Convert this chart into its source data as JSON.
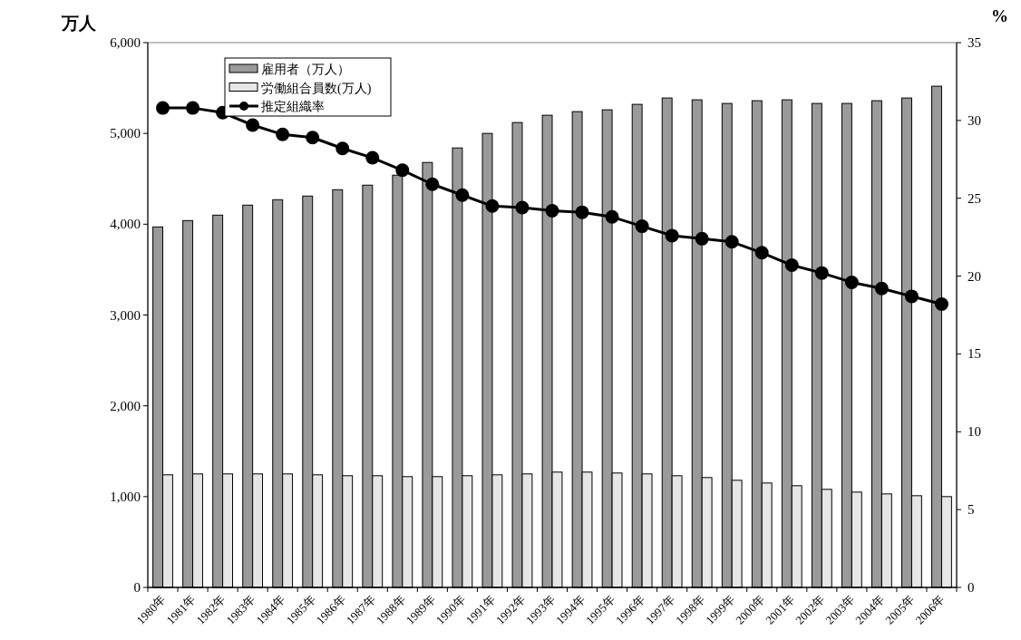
{
  "chart_data": {
    "type": "bar",
    "ylabel": "万人",
    "y2label": "%",
    "categories": [
      "1980年",
      "1981年",
      "1982年",
      "1983年",
      "1984年",
      "1985年",
      "1986年",
      "1987年",
      "1988年",
      "1989年",
      "1990年",
      "1991年",
      "1992年",
      "1993年",
      "1994年",
      "1995年",
      "1996年",
      "1997年",
      "1998年",
      "1999年",
      "2000年",
      "2001年",
      "2002年",
      "2003年",
      "2004年",
      "2005年",
      "2006年"
    ],
    "series": [
      {
        "name": "雇用者（万人）",
        "color": "#9a9a9a",
        "values": [
          3970,
          4040,
          4100,
          4210,
          4270,
          4310,
          4380,
          4430,
          4540,
          4680,
          4840,
          5000,
          5120,
          5200,
          5240,
          5260,
          5320,
          5390,
          5370,
          5330,
          5360,
          5370,
          5330,
          5330,
          5360,
          5390,
          5520
        ]
      },
      {
        "name": "労働組合員数(万人)",
        "color": "#e6e6e6",
        "values": [
          1240,
          1250,
          1250,
          1250,
          1250,
          1240,
          1230,
          1230,
          1220,
          1220,
          1230,
          1240,
          1250,
          1270,
          1270,
          1260,
          1250,
          1230,
          1210,
          1180,
          1150,
          1120,
          1080,
          1050,
          1030,
          1010,
          1000
        ]
      },
      {
        "name": "推定組織率",
        "type": "line",
        "axis": "y2",
        "color": "#000000",
        "marker": "circle",
        "values": [
          30.8,
          30.8,
          30.5,
          29.7,
          29.1,
          28.9,
          28.2,
          27.6,
          26.8,
          25.9,
          25.2,
          24.5,
          24.4,
          24.2,
          24.1,
          23.8,
          23.2,
          22.6,
          22.4,
          22.2,
          21.5,
          20.7,
          20.2,
          19.6,
          19.2,
          18.7,
          18.2
        ]
      }
    ],
    "ylim": [
      0,
      6000
    ],
    "yticks": [
      0,
      {
        "value": 1000,
        "label": "1,000"
      },
      {
        "value": 2000,
        "label": "2,000"
      },
      {
        "value": 3000,
        "label": "3,000"
      },
      {
        "value": 4000,
        "label": "4,000"
      },
      {
        "value": 5000,
        "label": "5,000"
      },
      {
        "value": 6000,
        "label": "6,000"
      }
    ],
    "y2lim": [
      0,
      35
    ],
    "y2ticks": [
      0,
      5,
      10,
      15,
      20,
      25,
      30,
      35
    ],
    "grid": false,
    "legend": "top left"
  }
}
